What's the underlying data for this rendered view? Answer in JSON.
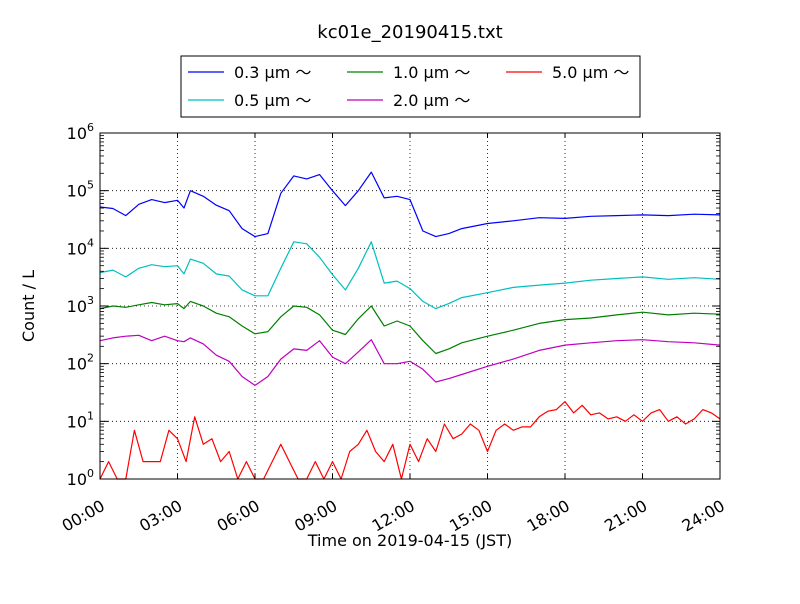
{
  "chart_data": {
    "type": "line",
    "title": "kc01e_20190415.txt",
    "xlabel": "Time on 2019-04-15 (JST)",
    "ylabel": "Count / L",
    "yscale": "log",
    "ylim": [
      1,
      1000000
    ],
    "xlim": [
      "00:00",
      "24:00"
    ],
    "grid": true,
    "legend_position": "top-center",
    "x_ticks": [
      "00:00",
      "03:00",
      "06:00",
      "09:00",
      "12:00",
      "15:00",
      "18:00",
      "21:00",
      "24:00"
    ],
    "y_ticks": [
      {
        "base": "10",
        "exp": "0",
        "value": 1
      },
      {
        "base": "10",
        "exp": "1",
        "value": 10
      },
      {
        "base": "10",
        "exp": "2",
        "value": 100
      },
      {
        "base": "10",
        "exp": "3",
        "value": 1000
      },
      {
        "base": "10",
        "exp": "4",
        "value": 10000
      },
      {
        "base": "10",
        "exp": "5",
        "value": 100000
      },
      {
        "base": "10",
        "exp": "6",
        "value": 1000000
      }
    ],
    "series": [
      {
        "name": "0.3 μm ～",
        "color": "#0000ff",
        "points": [
          [
            "00:00",
            52000
          ],
          [
            "00:30",
            49000
          ],
          [
            "01:00",
            37000
          ],
          [
            "01:30",
            58000
          ],
          [
            "02:00",
            70000
          ],
          [
            "02:30",
            62000
          ],
          [
            "03:00",
            68000
          ],
          [
            "03:15",
            50000
          ],
          [
            "03:30",
            100000
          ],
          [
            "04:00",
            80000
          ],
          [
            "04:30",
            56000
          ],
          [
            "05:00",
            45000
          ],
          [
            "05:30",
            22000
          ],
          [
            "06:00",
            16000
          ],
          [
            "06:30",
            18000
          ],
          [
            "07:00",
            90000
          ],
          [
            "07:30",
            180000
          ],
          [
            "08:00",
            160000
          ],
          [
            "08:30",
            190000
          ],
          [
            "09:00",
            100000
          ],
          [
            "09:30",
            55000
          ],
          [
            "10:00",
            100000
          ],
          [
            "10:30",
            210000
          ],
          [
            "11:00",
            75000
          ],
          [
            "11:30",
            80000
          ],
          [
            "12:00",
            70000
          ],
          [
            "12:30",
            20000
          ],
          [
            "13:00",
            16000
          ],
          [
            "13:30",
            18000
          ],
          [
            "14:00",
            22000
          ],
          [
            "15:00",
            27000
          ],
          [
            "16:00",
            30000
          ],
          [
            "17:00",
            34000
          ],
          [
            "18:00",
            33000
          ],
          [
            "19:00",
            36000
          ],
          [
            "20:00",
            37000
          ],
          [
            "21:00",
            38000
          ],
          [
            "22:00",
            37000
          ],
          [
            "23:00",
            39000
          ],
          [
            "24:00",
            38000
          ]
        ]
      },
      {
        "name": "0.5 μm ～",
        "color": "#00bfbf",
        "points": [
          [
            "00:00",
            3800
          ],
          [
            "00:30",
            4200
          ],
          [
            "01:00",
            3200
          ],
          [
            "01:30",
            4500
          ],
          [
            "02:00",
            5200
          ],
          [
            "02:30",
            4800
          ],
          [
            "03:00",
            5000
          ],
          [
            "03:15",
            3600
          ],
          [
            "03:30",
            6500
          ],
          [
            "04:00",
            5500
          ],
          [
            "04:30",
            3600
          ],
          [
            "05:00",
            3300
          ],
          [
            "05:30",
            1900
          ],
          [
            "06:00",
            1500
          ],
          [
            "06:30",
            1500
          ],
          [
            "07:00",
            4500
          ],
          [
            "07:30",
            13000
          ],
          [
            "08:00",
            12000
          ],
          [
            "08:30",
            7000
          ],
          [
            "09:00",
            3500
          ],
          [
            "09:30",
            1900
          ],
          [
            "10:00",
            4500
          ],
          [
            "10:30",
            13000
          ],
          [
            "11:00",
            2500
          ],
          [
            "11:30",
            2700
          ],
          [
            "12:00",
            2000
          ],
          [
            "12:30",
            1200
          ],
          [
            "13:00",
            900
          ],
          [
            "13:30",
            1100
          ],
          [
            "14:00",
            1400
          ],
          [
            "15:00",
            1700
          ],
          [
            "16:00",
            2100
          ],
          [
            "17:00",
            2300
          ],
          [
            "18:00",
            2500
          ],
          [
            "19:00",
            2800
          ],
          [
            "20:00",
            3000
          ],
          [
            "21:00",
            3200
          ],
          [
            "22:00",
            2900
          ],
          [
            "23:00",
            3100
          ],
          [
            "24:00",
            2900
          ]
        ]
      },
      {
        "name": "1.0 μm ～",
        "color": "#008000",
        "points": [
          [
            "00:00",
            900
          ],
          [
            "00:30",
            1000
          ],
          [
            "01:00",
            950
          ],
          [
            "01:30",
            1050
          ],
          [
            "02:00",
            1150
          ],
          [
            "02:30",
            1050
          ],
          [
            "03:00",
            1100
          ],
          [
            "03:15",
            900
          ],
          [
            "03:30",
            1200
          ],
          [
            "04:00",
            1000
          ],
          [
            "04:30",
            750
          ],
          [
            "05:00",
            650
          ],
          [
            "05:30",
            450
          ],
          [
            "06:00",
            330
          ],
          [
            "06:30",
            360
          ],
          [
            "07:00",
            650
          ],
          [
            "07:30",
            1000
          ],
          [
            "08:00",
            950
          ],
          [
            "08:30",
            700
          ],
          [
            "09:00",
            380
          ],
          [
            "09:30",
            320
          ],
          [
            "10:00",
            600
          ],
          [
            "10:30",
            1000
          ],
          [
            "11:00",
            450
          ],
          [
            "11:30",
            550
          ],
          [
            "12:00",
            450
          ],
          [
            "12:30",
            250
          ],
          [
            "13:00",
            150
          ],
          [
            "13:30",
            180
          ],
          [
            "14:00",
            230
          ],
          [
            "15:00",
            300
          ],
          [
            "16:00",
            380
          ],
          [
            "17:00",
            500
          ],
          [
            "18:00",
            580
          ],
          [
            "19:00",
            620
          ],
          [
            "20:00",
            700
          ],
          [
            "21:00",
            780
          ],
          [
            "22:00",
            700
          ],
          [
            "23:00",
            750
          ],
          [
            "24:00",
            720
          ]
        ]
      },
      {
        "name": "2.0 μm ～",
        "color": "#bf00bf",
        "points": [
          [
            "00:00",
            250
          ],
          [
            "00:30",
            280
          ],
          [
            "01:00",
            300
          ],
          [
            "01:30",
            310
          ],
          [
            "02:00",
            250
          ],
          [
            "02:30",
            300
          ],
          [
            "03:00",
            250
          ],
          [
            "03:15",
            240
          ],
          [
            "03:30",
            280
          ],
          [
            "04:00",
            220
          ],
          [
            "04:30",
            140
          ],
          [
            "05:00",
            110
          ],
          [
            "05:30",
            60
          ],
          [
            "06:00",
            42
          ],
          [
            "06:30",
            60
          ],
          [
            "07:00",
            120
          ],
          [
            "07:30",
            180
          ],
          [
            "08:00",
            170
          ],
          [
            "08:30",
            250
          ],
          [
            "09:00",
            130
          ],
          [
            "09:30",
            100
          ],
          [
            "10:00",
            160
          ],
          [
            "10:30",
            260
          ],
          [
            "11:00",
            100
          ],
          [
            "11:30",
            100
          ],
          [
            "12:00",
            110
          ],
          [
            "12:30",
            80
          ],
          [
            "13:00",
            48
          ],
          [
            "13:30",
            55
          ],
          [
            "14:00",
            65
          ],
          [
            "15:00",
            90
          ],
          [
            "16:00",
            120
          ],
          [
            "17:00",
            170
          ],
          [
            "18:00",
            210
          ],
          [
            "19:00",
            230
          ],
          [
            "20:00",
            250
          ],
          [
            "21:00",
            260
          ],
          [
            "22:00",
            240
          ],
          [
            "23:00",
            230
          ],
          [
            "24:00",
            210
          ]
        ]
      },
      {
        "name": "5.0 μm ～",
        "color": "#ff0000",
        "points": [
          [
            "00:00",
            1
          ],
          [
            "00:20",
            2
          ],
          [
            "00:40",
            1
          ],
          [
            "01:00",
            1
          ],
          [
            "01:20",
            7
          ],
          [
            "01:40",
            2
          ],
          [
            "02:00",
            2
          ],
          [
            "02:20",
            2
          ],
          [
            "02:40",
            7
          ],
          [
            "03:00",
            5
          ],
          [
            "03:20",
            2
          ],
          [
            "03:40",
            12
          ],
          [
            "04:00",
            4
          ],
          [
            "04:20",
            5
          ],
          [
            "04:40",
            2
          ],
          [
            "05:00",
            3
          ],
          [
            "05:20",
            1
          ],
          [
            "05:40",
            2
          ],
          [
            "06:00",
            1
          ],
          [
            "06:20",
            1
          ],
          [
            "06:40",
            2
          ],
          [
            "07:00",
            4
          ],
          [
            "07:20",
            2
          ],
          [
            "07:40",
            1
          ],
          [
            "08:00",
            1
          ],
          [
            "08:20",
            2
          ],
          [
            "08:40",
            1
          ],
          [
            "09:00",
            2
          ],
          [
            "09:20",
            1
          ],
          [
            "09:40",
            3
          ],
          [
            "10:00",
            4
          ],
          [
            "10:20",
            7
          ],
          [
            "10:40",
            3
          ],
          [
            "11:00",
            2
          ],
          [
            "11:20",
            4
          ],
          [
            "11:40",
            1
          ],
          [
            "12:00",
            4
          ],
          [
            "12:20",
            2
          ],
          [
            "12:40",
            5
          ],
          [
            "13:00",
            3
          ],
          [
            "13:20",
            9
          ],
          [
            "13:40",
            5
          ],
          [
            "14:00",
            6
          ],
          [
            "14:20",
            9
          ],
          [
            "14:40",
            7
          ],
          [
            "15:00",
            3
          ],
          [
            "15:20",
            7
          ],
          [
            "15:40",
            9
          ],
          [
            "16:00",
            7
          ],
          [
            "16:20",
            8
          ],
          [
            "16:40",
            8
          ],
          [
            "17:00",
            12
          ],
          [
            "17:20",
            15
          ],
          [
            "17:40",
            16
          ],
          [
            "18:00",
            22
          ],
          [
            "18:20",
            14
          ],
          [
            "18:40",
            19
          ],
          [
            "19:00",
            13
          ],
          [
            "19:20",
            14
          ],
          [
            "19:40",
            11
          ],
          [
            "20:00",
            12
          ],
          [
            "20:20",
            10
          ],
          [
            "20:40",
            13
          ],
          [
            "21:00",
            10
          ],
          [
            "21:20",
            14
          ],
          [
            "21:40",
            16
          ],
          [
            "22:00",
            10
          ],
          [
            "22:20",
            12
          ],
          [
            "22:40",
            9
          ],
          [
            "23:00",
            11
          ],
          [
            "23:20",
            16
          ],
          [
            "23:40",
            14
          ],
          [
            "24:00",
            11
          ]
        ]
      }
    ]
  }
}
